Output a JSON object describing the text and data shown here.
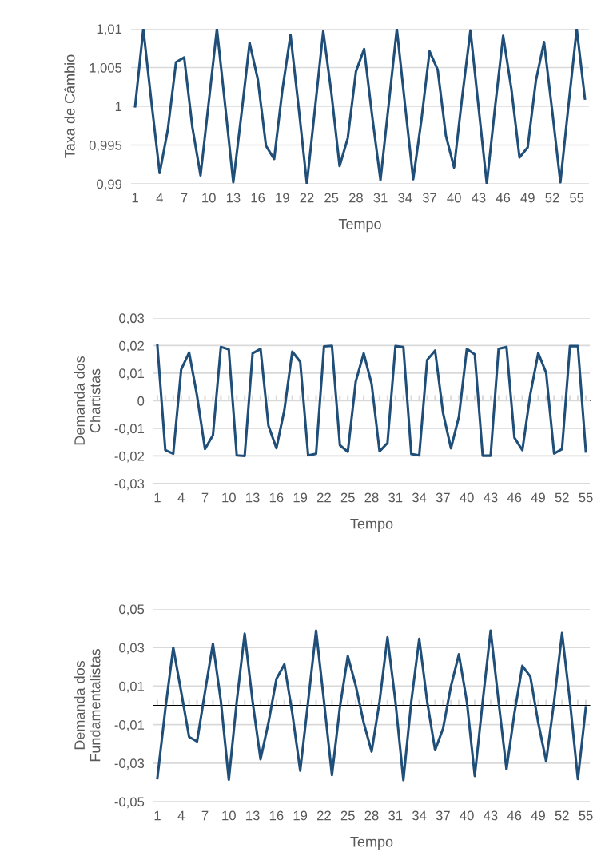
{
  "chart_data": [
    {
      "type": "line",
      "xlabel": "Tempo",
      "ylabel": "Taxa de Câmbio",
      "grid": "y",
      "ylim": [
        0.99,
        1.01
      ],
      "yticks": [
        {
          "value": 0.99,
          "label": "0,99"
        },
        {
          "value": 0.995,
          "label": "0,995"
        },
        {
          "value": 1,
          "label": "1"
        },
        {
          "value": 1.005,
          "label": "1,005"
        },
        {
          "value": 1.01,
          "label": "1,01"
        }
      ],
      "categories": [
        "1",
        null,
        null,
        "4",
        null,
        null,
        "7",
        null,
        null,
        "10",
        null,
        null,
        "13",
        null,
        null,
        "16",
        null,
        null,
        "19",
        null,
        null,
        "22",
        null,
        null,
        "25",
        null,
        null,
        "28",
        null,
        null,
        "31",
        null,
        null,
        "34",
        null,
        null,
        "37",
        null,
        null,
        "40",
        null,
        null,
        "43",
        null,
        null,
        "46",
        null,
        null,
        "49",
        null,
        null,
        "52",
        null,
        null,
        "55",
        null
      ],
      "series": [
        {
          "color": "#1f4e79",
          "values": [
            1.0,
            1.01,
            1.0005,
            0.9914,
            0.997,
            1.0057,
            1.0063,
            0.9973,
            0.9911,
            1.0005,
            1.01,
            1.0002,
            0.9902,
            0.999,
            1.0082,
            1.0035,
            0.9949,
            0.9932,
            1.0021,
            1.0092,
            0.9998,
            0.99,
            0.9998,
            1.0097,
            1.0017,
            0.9923,
            0.9959,
            1.0045,
            1.0074,
            0.9986,
            0.9905,
            1.0002,
            1.01,
            1.0002,
            0.9906,
            0.9982,
            1.0071,
            1.0047,
            0.9962,
            0.9921,
            1.0013,
            1.0098,
            0.9998,
            0.99,
            0.9998,
            1.0091,
            1.0023,
            0.9934,
            0.9947,
            1.0033,
            1.0083,
            0.9994,
            0.9902,
            1.0002,
            1.01,
            1.001
          ]
        }
      ]
    },
    {
      "type": "line",
      "xlabel": "Tempo",
      "ylabel": "Demanda dos\nChartistas",
      "grid": "y",
      "ylim": [
        -0.03,
        0.03
      ],
      "yticks": [
        {
          "value": -0.03,
          "label": "-0,03"
        },
        {
          "value": -0.02,
          "label": "-0,02"
        },
        {
          "value": -0.01,
          "label": "-0,01"
        },
        0,
        {
          "value": 0.01,
          "label": "0,01"
        },
        {
          "value": 0.02,
          "label": "0,02"
        },
        {
          "value": 0.03,
          "label": "0,03"
        }
      ],
      "categories": [
        "1",
        null,
        null,
        "4",
        null,
        null,
        "7",
        null,
        null,
        "10",
        null,
        null,
        "13",
        null,
        null,
        "16",
        null,
        null,
        "19",
        null,
        null,
        "22",
        null,
        null,
        "25",
        null,
        null,
        "28",
        null,
        null,
        "31",
        null,
        null,
        "34",
        null,
        null,
        "37",
        null,
        null,
        "40",
        null,
        null,
        "43",
        null,
        null,
        "46",
        null,
        null,
        "49",
        null,
        null,
        "52",
        null,
        null,
        "55"
      ],
      "series": [
        {
          "color": "#1f4e79",
          "values": [
            0.02,
            -0.0179,
            -0.0192,
            0.0113,
            0.0175,
            0.0018,
            -0.0175,
            -0.0125,
            0.0195,
            0.0186,
            -0.0198,
            -0.02,
            0.0172,
            0.0188,
            -0.0091,
            -0.0172,
            -0.0034,
            0.0178,
            0.0141,
            -0.0198,
            -0.0192,
            0.0197,
            0.0199,
            -0.0161,
            -0.0185,
            0.007,
            0.0172,
            0.0061,
            -0.0183,
            -0.0153,
            0.0198,
            0.0195,
            -0.0193,
            -0.0198,
            0.0148,
            0.0182,
            -0.0044,
            -0.0172,
            -0.0058,
            0.0188,
            0.0168,
            -0.0199,
            -0.0199,
            0.0188,
            0.0195,
            -0.0134,
            -0.0179,
            0.0023,
            0.0173,
            0.0101,
            -0.0191,
            -0.0175,
            0.0198,
            0.0198,
            -0.0184
          ]
        }
      ]
    },
    {
      "type": "line",
      "xlabel": "Tempo",
      "ylabel": "Demanda dos\nFundamentalistas",
      "grid": "y",
      "ylim": [
        -0.05,
        0.05
      ],
      "yticks": [
        {
          "value": -0.05,
          "label": "-0,05"
        },
        {
          "value": -0.03,
          "label": "-0,03"
        },
        {
          "value": -0.01,
          "label": "-0,01"
        },
        {
          "value": 0.01,
          "label": "0,01"
        },
        {
          "value": 0.03,
          "label": "0,03"
        },
        {
          "value": 0.05,
          "label": "0,05"
        }
      ],
      "categories": [
        "1",
        null,
        null,
        "4",
        null,
        null,
        "7",
        null,
        null,
        "10",
        null,
        null,
        "13",
        null,
        null,
        "16",
        null,
        null,
        "19",
        null,
        null,
        "22",
        null,
        null,
        "25",
        null,
        null,
        "28",
        null,
        null,
        "31",
        null,
        null,
        "34",
        null,
        null,
        "37",
        null,
        null,
        "40",
        null,
        null,
        "43",
        null,
        null,
        "46",
        null,
        null,
        "49",
        null,
        null,
        "52",
        null,
        null,
        "55"
      ],
      "series": [
        {
          "color": "#1f4e79",
          "values": [
            -0.0378,
            -0.002,
            0.03,
            0.007,
            -0.0164,
            -0.0188,
            0.007,
            0.032,
            0.0022,
            -0.0386,
            0.002,
            0.0372,
            0.002,
            -0.028,
            -0.009,
            0.0137,
            0.0213,
            -0.004,
            -0.0339,
            0.002,
            0.0388,
            0.002,
            -0.0362,
            -0.001,
            0.0256,
            0.0102,
            -0.009,
            -0.024,
            0.002,
            0.0353,
            0.002,
            -0.0388,
            0.002,
            0.0345,
            0.002,
            -0.0232,
            -0.012,
            0.01,
            0.0265,
            0.002,
            -0.0367,
            0.002,
            0.0388,
            0.002,
            -0.0332,
            -0.004,
            0.0205,
            0.015,
            -0.009,
            -0.0291,
            0.002,
            0.0375,
            0.002,
            -0.0383,
            -0.001
          ]
        }
      ]
    }
  ]
}
